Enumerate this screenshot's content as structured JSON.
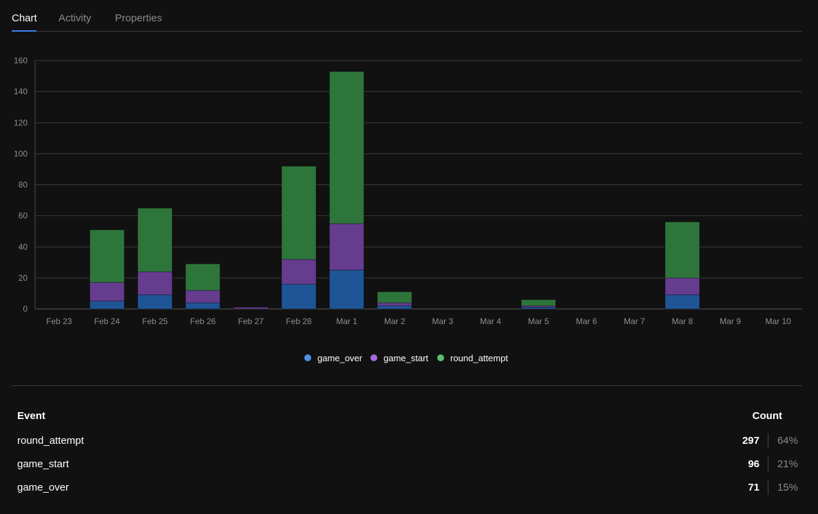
{
  "tabs": [
    {
      "label": "Chart",
      "active": true
    },
    {
      "label": "Activity",
      "active": false
    },
    {
      "label": "Properties",
      "active": false
    }
  ],
  "colors": {
    "background": "#111111",
    "accent": "#3b82f6",
    "game_over": "#2563eb",
    "game_start": "#7c3aed",
    "round_attempt": "#3e8e4a"
  },
  "chart_data": {
    "type": "bar",
    "stacked": true,
    "categories": [
      "Feb 23",
      "Feb 24",
      "Feb 25",
      "Feb 26",
      "Feb 27",
      "Feb 28",
      "Mar 1",
      "Mar 2",
      "Mar 3",
      "Mar 4",
      "Mar 5",
      "Mar 6",
      "Mar 7",
      "Mar 8",
      "Mar 9",
      "Mar 10"
    ],
    "series": [
      {
        "name": "game_over",
        "color": "#1f5596",
        "legend_color": "#4f8fe6",
        "values": [
          0,
          5,
          9,
          4,
          0,
          16,
          25,
          2,
          0,
          0,
          1,
          0,
          0,
          9,
          0,
          0
        ]
      },
      {
        "name": "game_start",
        "color": "#663c8f",
        "legend_color": "#a569dd",
        "values": [
          0,
          12,
          15,
          8,
          1,
          16,
          30,
          2,
          0,
          0,
          1,
          0,
          0,
          11,
          0,
          0
        ]
      },
      {
        "name": "round_attempt",
        "color": "#2e753b",
        "legend_color": "#5bbf6a",
        "values": [
          0,
          34,
          41,
          17,
          0,
          60,
          98,
          7,
          0,
          0,
          4,
          0,
          0,
          36,
          0,
          0
        ]
      }
    ],
    "yticks": [
      0,
      20,
      40,
      60,
      80,
      100,
      120,
      140,
      160
    ],
    "ylim": [
      0,
      160
    ],
    "grid": true,
    "legend": "bottom-center",
    "title": "",
    "xlabel": "",
    "ylabel": ""
  },
  "table": {
    "headers": {
      "event": "Event",
      "count": "Count"
    },
    "rows": [
      {
        "event": "round_attempt",
        "count": "297",
        "percent": "64%"
      },
      {
        "event": "game_start",
        "count": "96",
        "percent": "21%"
      },
      {
        "event": "game_over",
        "count": "71",
        "percent": "15%"
      }
    ]
  }
}
